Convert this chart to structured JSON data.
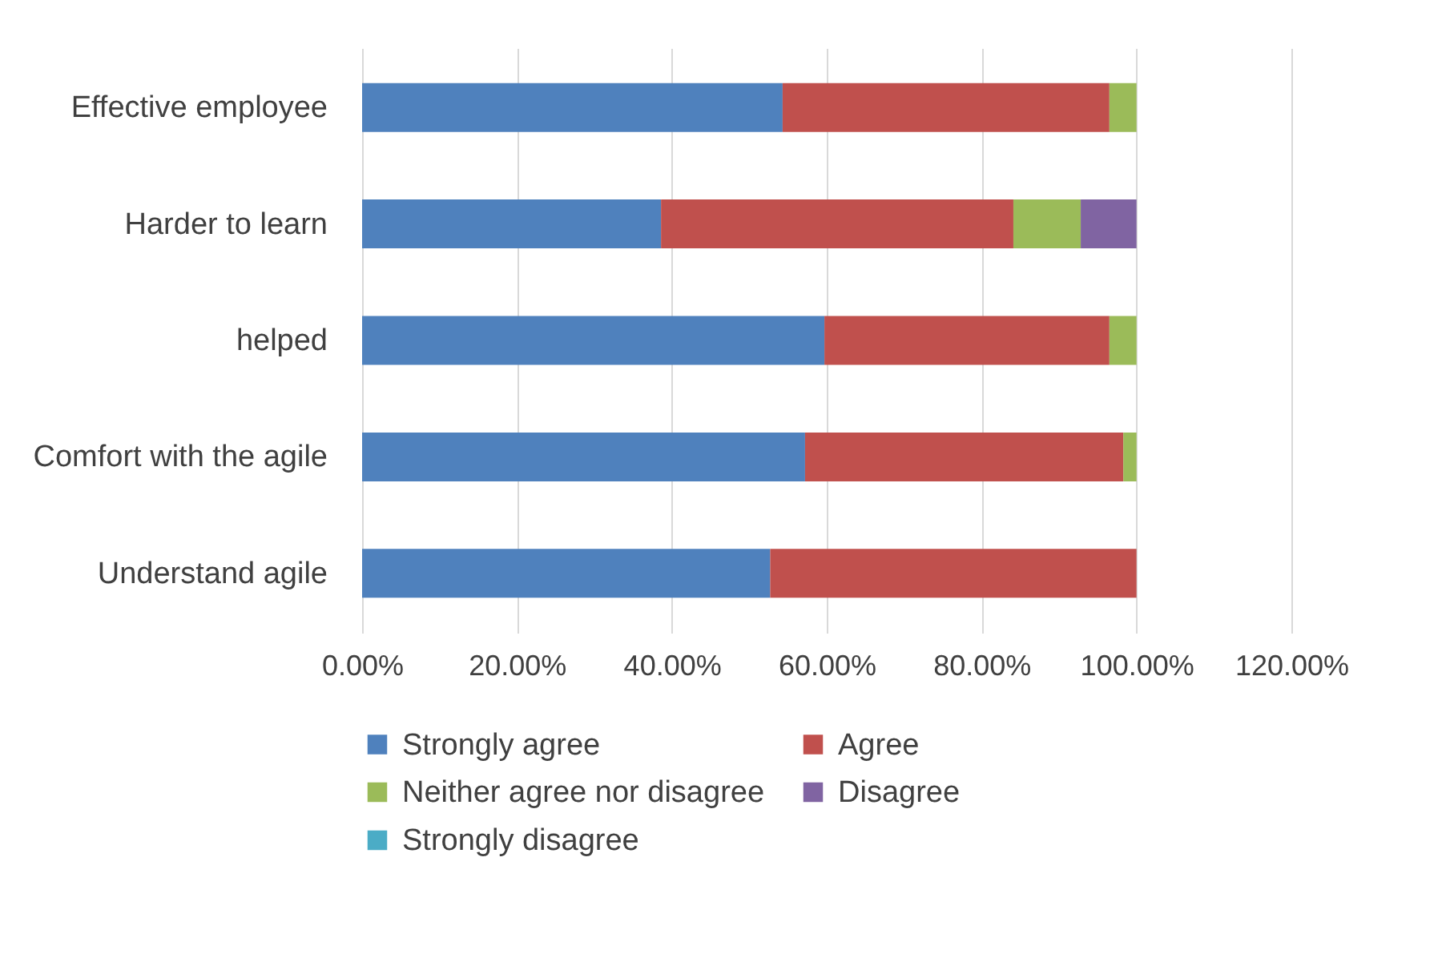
{
  "chart_data": {
    "type": "bar",
    "orientation": "horizontal",
    "stacked": true,
    "categories": [
      "Effective employee",
      "Harder to learn",
      "helped",
      "Comfort with the agile",
      "Understand agile"
    ],
    "series": [
      {
        "name": "Strongly agree",
        "color": "#4f81bd",
        "values": [
          54.3,
          38.6,
          59.7,
          57.2,
          52.7
        ]
      },
      {
        "name": "Agree",
        "color": "#c0504d",
        "values": [
          42.2,
          45.5,
          36.8,
          41.1,
          47.3
        ]
      },
      {
        "name": "Neither agree nor disagree",
        "color": "#9bbb59",
        "values": [
          3.5,
          8.7,
          3.5,
          1.7,
          0
        ]
      },
      {
        "name": "Disagree",
        "color": "#8064a2",
        "values": [
          0,
          7.2,
          0,
          0,
          0
        ]
      },
      {
        "name": "Strongly disagree",
        "color": "#4bacc6",
        "values": [
          0,
          0,
          0,
          0,
          0
        ]
      }
    ],
    "xlim": [
      0,
      120
    ],
    "xticks": [
      {
        "value": 0,
        "label": "0.00%"
      },
      {
        "value": 20,
        "label": "20.00%"
      },
      {
        "value": 40,
        "label": "40.00%"
      },
      {
        "value": 60,
        "label": "60.00%"
      },
      {
        "value": 80,
        "label": "80.00%"
      },
      {
        "value": 100,
        "label": "100.00%"
      },
      {
        "value": 120,
        "label": "120.00%"
      }
    ],
    "grid": "x",
    "legend": "bottom"
  }
}
